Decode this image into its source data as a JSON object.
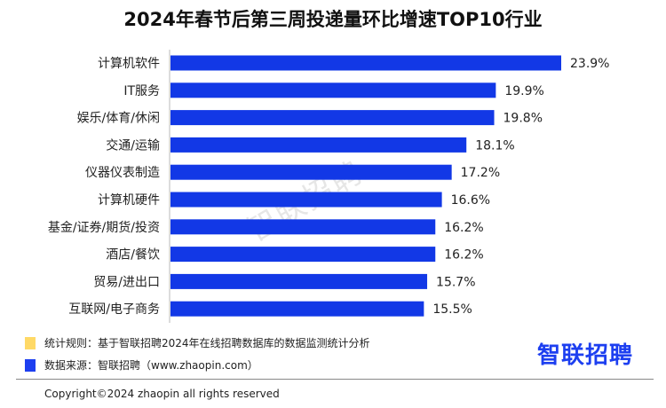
{
  "colors": {
    "bar": "#1238e6",
    "legend_rule": "#ffd966",
    "legend_source": "#1d3ff0",
    "axis": "#d0d0d0"
  },
  "chart_data": {
    "type": "bar",
    "orientation": "horizontal",
    "title": "2024年春节后第三周投递量环比增速TOP10行业",
    "categories": [
      "计算机软件",
      "IT服务",
      "娱乐/体育/休闲",
      "交通/运输",
      "仪器仪表制造",
      "计算机硬件",
      "基金/证券/期货/投资",
      "酒店/餐饮",
      "贸易/进出口",
      "互联网/电子商务"
    ],
    "values": [
      23.9,
      19.9,
      19.8,
      18.1,
      17.2,
      16.6,
      16.2,
      16.2,
      15.7,
      15.5
    ],
    "value_labels": [
      "23.9%",
      "19.9%",
      "19.8%",
      "18.1%",
      "17.2%",
      "16.6%",
      "16.2%",
      "16.2%",
      "15.7%",
      "15.5%"
    ],
    "unit": "%",
    "xlabel": "",
    "ylabel": "",
    "xlim": [
      0,
      23.9
    ],
    "grid": false
  },
  "watermark": "智联招聘",
  "legend": {
    "rule": "统计规则：基于智联招聘2024年在线招聘数据库的数据监测统计分析",
    "source": "数据来源：智联招聘（www.zhaopin.com）"
  },
  "logo": "智联招聘",
  "copyright": "Copyright©2024 zhaopin all rights reserved"
}
